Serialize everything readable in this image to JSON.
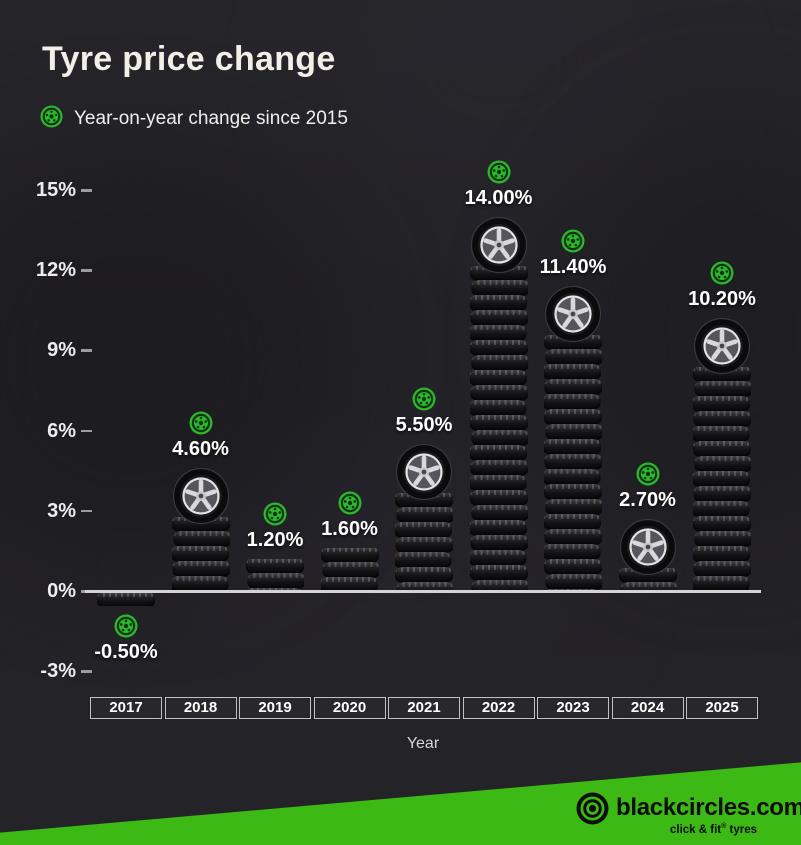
{
  "page": {
    "title": "Tyre price change",
    "legend_label": "Year-on-year change since 2015"
  },
  "chart_data": {
    "type": "bar",
    "title": "Tyre price change",
    "legend": [
      "Year-on-year change since 2015"
    ],
    "legend_position": "top-left",
    "xlabel": "Year",
    "ylabel": "",
    "categories": [
      "2017",
      "2018",
      "2019",
      "2020",
      "2021",
      "2022",
      "2023",
      "2024",
      "2025"
    ],
    "series": [
      {
        "name": "Year-on-year change since 2015",
        "values": [
          -0.5,
          4.6,
          1.2,
          1.6,
          5.5,
          14.0,
          11.4,
          2.7,
          10.2
        ],
        "labels": [
          "-0.50%",
          "4.60%",
          "1.20%",
          "1.60%",
          "5.50%",
          "14.00%",
          "11.40%",
          "2.70%",
          "10.20%"
        ]
      }
    ],
    "y_ticks": [
      {
        "value": 15,
        "label": "15%"
      },
      {
        "value": 12,
        "label": "12%"
      },
      {
        "value": 9,
        "label": "9%"
      },
      {
        "value": 6,
        "label": "6%"
      },
      {
        "value": 3,
        "label": "3%"
      },
      {
        "value": 0,
        "label": "0%"
      },
      {
        "value": -3,
        "label": "-3%"
      }
    ],
    "ylim": [
      -3.8,
      16.5
    ],
    "grid": false,
    "bar_decor": {
      "style": "stacked-tyres",
      "wheel_on_top": [
        false,
        true,
        false,
        false,
        true,
        true,
        true,
        true,
        true
      ]
    }
  },
  "footer": {
    "brand": "blackcircles.com",
    "tagline_prefix": "click & fit",
    "tagline_reg": "®",
    "tagline_suffix": "tyres"
  },
  "colors": {
    "background": "#232227",
    "accent_green": "#2db92d",
    "badge_glyph": "#0d340f",
    "footer_green": "#3cb914",
    "axis_line": "#d4d4d4",
    "text_primary": "#f2efe9",
    "logo_black": "#0d0d0d"
  }
}
